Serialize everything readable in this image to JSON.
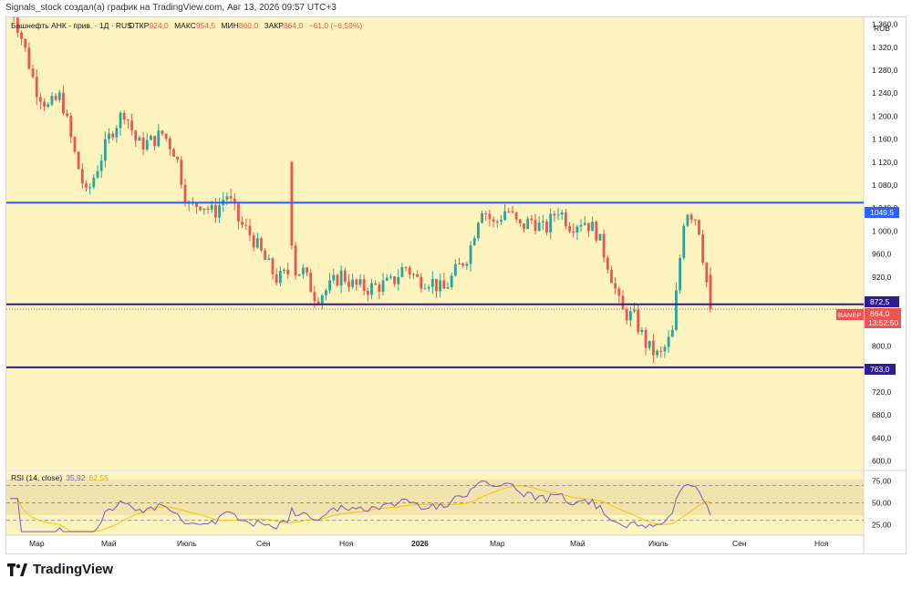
{
  "header_text": "Signals_stock создал(а) график на TradingView.com, Авг 13, 2026 09:57 UTC+3",
  "legend": {
    "symbol": "Башнефть АНК - прив. · 1Д · RUS",
    "open_label": "ОТКР",
    "open": "924,0",
    "high_label": "МАКС",
    "high": "954,5",
    "low_label": "МИН",
    "low": "860,0",
    "close_label": "ЗАКР",
    "close": "864,0",
    "change": "−61,0 (−6,59%)"
  },
  "currency": "RUB",
  "rsi_label": "RSI (14, close)",
  "rsi_value": "35,92",
  "rsi_ma_value": "62,55",
  "price_tag": {
    "ticker": "BANEP",
    "price": "864,0",
    "countdown": "13:52:50"
  },
  "level_tags": [
    "1049,5",
    "872,5",
    "763,0"
  ],
  "brand": "TradingView",
  "colors": {
    "background": "#fdf3bf",
    "up": "#26a69a",
    "down": "#ef5350",
    "blue_line": "#2962ff",
    "purple_line": "#311b92",
    "rsi_line": "#7e57c2",
    "rsi_ma": "#f5c400"
  },
  "chart_data": {
    "type": "candlestick",
    "y_ticks": [
      "1 360,0",
      "1 320,0",
      "1 280,0",
      "1 240,0",
      "1 200,0",
      "1 160,0",
      "1 120,0",
      "1 080,0",
      "1 040,0",
      "1 000,0",
      "960,0",
      "920,0",
      "880,0",
      "840,0",
      "800,0",
      "760,0",
      "720,0",
      "680,0",
      "640,0",
      "600,0"
    ],
    "ylim": [
      585,
      1372
    ],
    "x_ticks": [
      "Мар",
      "Май",
      "Июль",
      "Сен",
      "Ноя",
      "2026",
      "Мар",
      "Май",
      "Июль",
      "Сен",
      "Ноя"
    ],
    "horizontal_levels": [
      {
        "value": 1049.5,
        "color": "#2962ff"
      },
      {
        "value": 872.5,
        "color": "#311b92"
      },
      {
        "value": 763.0,
        "color": "#311b92"
      }
    ],
    "close_path": [
      1400,
      1330,
      1250,
      1215,
      1235,
      1140,
      1060,
      1120,
      1175,
      1210,
      1150,
      1155,
      1170,
      1135,
      1040,
      1050,
      1030,
      1065,
      1015,
      990,
      950,
      915,
      930,
      930,
      885,
      900,
      925,
      905,
      900,
      905,
      910,
      940,
      915,
      915,
      895,
      930,
      960,
      1045,
      1010,
      1040,
      1005,
      1020,
      1000,
      1040,
      1010,
      1020,
      1000,
      940,
      860,
      850,
      800,
      780,
      820,
      1040,
      1020,
      864
    ],
    "rsi_ticks": [
      "75,00",
      "50,00",
      "25,00"
    ],
    "rsi_levels": [
      70,
      50,
      30
    ],
    "rsi_ylim": [
      15,
      82
    ]
  }
}
